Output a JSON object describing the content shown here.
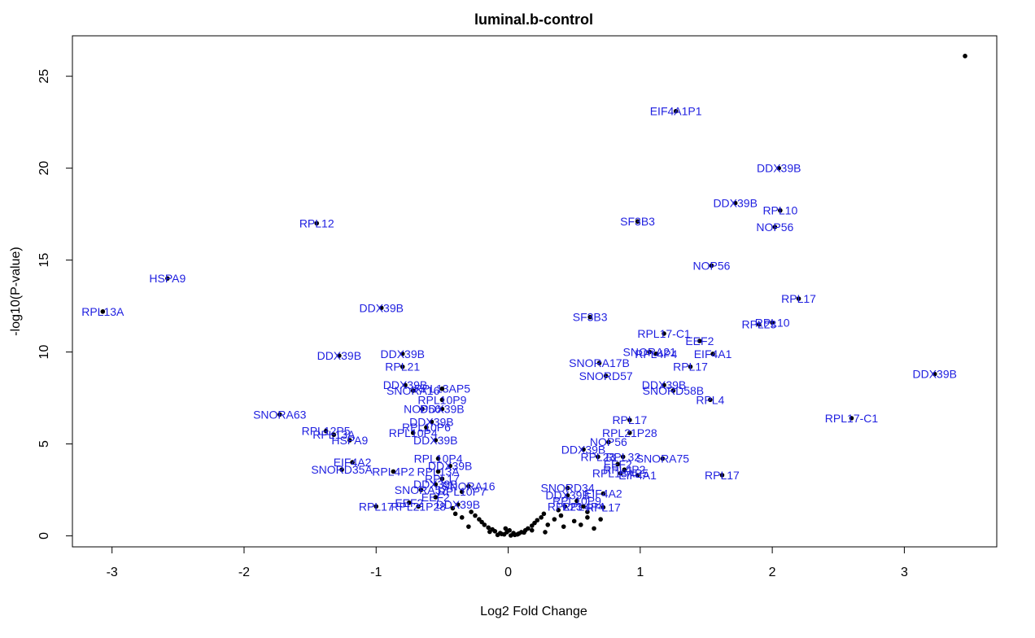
{
  "chart_data": {
    "type": "scatter",
    "title": "luminal.b-control",
    "xlabel": "Log2 Fold Change",
    "ylabel": "-log10(P-value)",
    "xlim": [
      -3.3,
      3.7
    ],
    "ylim": [
      -0.6,
      27.2
    ],
    "xticks": [
      -3,
      -2,
      -1,
      0,
      1,
      2,
      3
    ],
    "yticks": [
      0,
      5,
      10,
      15,
      20,
      25
    ],
    "grid": false,
    "legend": "none",
    "point_color": "#000000",
    "label_color": "#1f1fe0",
    "labeled_points": [
      {
        "x": 1.27,
        "y": 23.1,
        "label": "EIF4A1P1"
      },
      {
        "x": 2.05,
        "y": 20.0,
        "label": "DDX39B"
      },
      {
        "x": 1.72,
        "y": 18.1,
        "label": "DDX39B"
      },
      {
        "x": 2.06,
        "y": 17.7,
        "label": "RPL10"
      },
      {
        "x": 2.02,
        "y": 16.8,
        "label": "NOP56"
      },
      {
        "x": -1.45,
        "y": 17.0,
        "label": "RPL12"
      },
      {
        "x": 0.98,
        "y": 17.1,
        "label": "SF3B3"
      },
      {
        "x": -2.58,
        "y": 14.0,
        "label": "HSPA9"
      },
      {
        "x": 1.54,
        "y": 14.7,
        "label": "NOP56"
      },
      {
        "x": -3.07,
        "y": 12.2,
        "label": "RPL13A"
      },
      {
        "x": 2.2,
        "y": 12.9,
        "label": "RPL17"
      },
      {
        "x": -0.96,
        "y": 12.4,
        "label": "DDX39B"
      },
      {
        "x": 0.62,
        "y": 11.9,
        "label": "SF3B3"
      },
      {
        "x": 2.0,
        "y": 11.6,
        "label": "RPL10"
      },
      {
        "x": 1.9,
        "y": 11.5,
        "label": "RPL23"
      },
      {
        "x": 1.18,
        "y": 11.0,
        "label": "RPL17-C1"
      },
      {
        "x": 1.45,
        "y": 10.6,
        "label": "EEF2"
      },
      {
        "x": 1.07,
        "y": 10.0,
        "label": "SNORA21"
      },
      {
        "x": 1.12,
        "y": 9.9,
        "label": "RPL4P4"
      },
      {
        "x": 1.55,
        "y": 9.9,
        "label": "EIF4A1"
      },
      {
        "x": -0.8,
        "y": 9.9,
        "label": "DDX39B"
      },
      {
        "x": -1.28,
        "y": 9.8,
        "label": "DDX39B"
      },
      {
        "x": 0.69,
        "y": 9.4,
        "label": "SNORA17B"
      },
      {
        "x": 1.38,
        "y": 9.2,
        "label": "RPL17"
      },
      {
        "x": -0.8,
        "y": 9.2,
        "label": "RPL21"
      },
      {
        "x": 0.74,
        "y": 8.7,
        "label": "SNORD57"
      },
      {
        "x": 3.23,
        "y": 8.8,
        "label": "DDX39B"
      },
      {
        "x": 1.18,
        "y": 8.2,
        "label": "DDX39B"
      },
      {
        "x": 1.25,
        "y": 7.9,
        "label": "SNORD58B"
      },
      {
        "x": -0.78,
        "y": 8.2,
        "label": "DDX39B"
      },
      {
        "x": -0.72,
        "y": 7.9,
        "label": "SNORA16"
      },
      {
        "x": -0.5,
        "y": 8.0,
        "label": "RPL13AP5"
      },
      {
        "x": -0.5,
        "y": 7.4,
        "label": "RPL10P9"
      },
      {
        "x": 1.53,
        "y": 7.4,
        "label": "RPL4"
      },
      {
        "x": -0.65,
        "y": 6.9,
        "label": "NOP56"
      },
      {
        "x": -0.5,
        "y": 6.9,
        "label": "DDX39B"
      },
      {
        "x": -1.73,
        "y": 6.6,
        "label": "SNORA63"
      },
      {
        "x": 2.6,
        "y": 6.4,
        "label": "RPL17-C1"
      },
      {
        "x": -0.58,
        "y": 6.2,
        "label": "DDX39B"
      },
      {
        "x": -0.62,
        "y": 5.9,
        "label": "RPL10P6"
      },
      {
        "x": 0.92,
        "y": 6.3,
        "label": "RPL17"
      },
      {
        "x": -1.38,
        "y": 5.7,
        "label": "RPL12P5"
      },
      {
        "x": -1.32,
        "y": 5.5,
        "label": "RPL13A"
      },
      {
        "x": -1.2,
        "y": 5.2,
        "label": "HSPA9"
      },
      {
        "x": -0.72,
        "y": 5.6,
        "label": "RPL10P4"
      },
      {
        "x": 0.92,
        "y": 5.6,
        "label": "RPL21P28"
      },
      {
        "x": -0.55,
        "y": 5.2,
        "label": "DDX39B"
      },
      {
        "x": 0.76,
        "y": 5.1,
        "label": "NOP56"
      },
      {
        "x": 0.57,
        "y": 4.7,
        "label": "DDX39B"
      },
      {
        "x": 0.68,
        "y": 4.3,
        "label": "RPL23"
      },
      {
        "x": 0.87,
        "y": 4.3,
        "label": "RPL32"
      },
      {
        "x": 1.17,
        "y": 4.2,
        "label": "SNORA75"
      },
      {
        "x": -0.53,
        "y": 4.2,
        "label": "RPL10P4"
      },
      {
        "x": -1.18,
        "y": 4.0,
        "label": "EIF4A2"
      },
      {
        "x": 0.83,
        "y": 3.9,
        "label": "EEF2"
      },
      {
        "x": -0.44,
        "y": 3.8,
        "label": "DDX39B"
      },
      {
        "x": 0.88,
        "y": 3.6,
        "label": "RPL4P2"
      },
      {
        "x": -0.53,
        "y": 3.5,
        "label": "RPL13A"
      },
      {
        "x": -1.26,
        "y": 3.6,
        "label": "SNORD35A"
      },
      {
        "x": -0.87,
        "y": 3.5,
        "label": "RPL4P2"
      },
      {
        "x": 0.85,
        "y": 3.4,
        "label": "RPL13AP5"
      },
      {
        "x": 0.98,
        "y": 3.3,
        "label": "EIF4A1"
      },
      {
        "x": 1.62,
        "y": 3.3,
        "label": "RPL17"
      },
      {
        "x": -0.5,
        "y": 3.1,
        "label": "RPL17"
      },
      {
        "x": -0.55,
        "y": 2.8,
        "label": "DDX39B"
      },
      {
        "x": -0.3,
        "y": 2.7,
        "label": "SNORA16"
      },
      {
        "x": 0.45,
        "y": 2.6,
        "label": "SNORD34"
      },
      {
        "x": -0.66,
        "y": 2.5,
        "label": "SNORA57"
      },
      {
        "x": -0.35,
        "y": 2.4,
        "label": "RPL10P7"
      },
      {
        "x": 0.72,
        "y": 2.3,
        "label": "EIF4A2"
      },
      {
        "x": 0.45,
        "y": 2.2,
        "label": "DDX39B"
      },
      {
        "x": -0.55,
        "y": 2.1,
        "label": "EEF2"
      },
      {
        "x": 0.52,
        "y": 1.9,
        "label": "RPL10P9"
      },
      {
        "x": -0.75,
        "y": 1.8,
        "label": "EEF2"
      },
      {
        "x": -0.38,
        "y": 1.7,
        "label": "DDX39B"
      },
      {
        "x": -1.0,
        "y": 1.6,
        "label": "RPL17"
      },
      {
        "x": -0.68,
        "y": 1.6,
        "label": "RPL21P28"
      },
      {
        "x": 0.57,
        "y": 1.6,
        "label": "RPL4P4"
      },
      {
        "x": 0.43,
        "y": 1.6,
        "label": "RPL23"
      },
      {
        "x": 0.72,
        "y": 1.55,
        "label": "RPL17"
      }
    ],
    "unlabeled_points": [
      {
        "x": 3.46,
        "y": 26.1
      },
      {
        "x": 0.02,
        "y": 0.02
      },
      {
        "x": 0.05,
        "y": 0.05
      },
      {
        "x": -0.03,
        "y": 0.08
      },
      {
        "x": 0.08,
        "y": 0.12
      },
      {
        "x": -0.06,
        "y": 0.15
      },
      {
        "x": 0.1,
        "y": 0.2
      },
      {
        "x": -0.1,
        "y": 0.25
      },
      {
        "x": 0.13,
        "y": 0.3
      },
      {
        "x": -0.12,
        "y": 0.35
      },
      {
        "x": 0.15,
        "y": 0.4
      },
      {
        "x": -0.15,
        "y": 0.45
      },
      {
        "x": 0.18,
        "y": 0.55
      },
      {
        "x": -0.18,
        "y": 0.6
      },
      {
        "x": 0.2,
        "y": 0.7
      },
      {
        "x": -0.2,
        "y": 0.75
      },
      {
        "x": 0.22,
        "y": 0.85
      },
      {
        "x": -0.22,
        "y": 0.9
      },
      {
        "x": 0.25,
        "y": 1.0
      },
      {
        "x": -0.25,
        "y": 1.1
      },
      {
        "x": 0.27,
        "y": 1.2
      },
      {
        "x": -0.28,
        "y": 1.3
      },
      {
        "x": 0.3,
        "y": 0.6
      },
      {
        "x": -0.3,
        "y": 0.5
      },
      {
        "x": 0.01,
        "y": 0.3
      },
      {
        "x": -0.01,
        "y": 0.2
      },
      {
        "x": 0.04,
        "y": 0.15
      },
      {
        "x": -0.05,
        "y": 0.1
      },
      {
        "x": 0.07,
        "y": 0.08
      },
      {
        "x": -0.08,
        "y": 0.05
      },
      {
        "x": 0.12,
        "y": 0.18
      },
      {
        "x": -0.14,
        "y": 0.22
      },
      {
        "x": 0.35,
        "y": 0.9
      },
      {
        "x": -0.35,
        "y": 1.0
      },
      {
        "x": 0.4,
        "y": 1.1
      },
      {
        "x": -0.4,
        "y": 1.2
      },
      {
        "x": 0.42,
        "y": 0.5
      },
      {
        "x": 0.5,
        "y": 0.8
      },
      {
        "x": 0.55,
        "y": 0.6
      },
      {
        "x": 0.6,
        "y": 1.0
      },
      {
        "x": 0.65,
        "y": 0.4
      },
      {
        "x": 0.38,
        "y": 1.4
      },
      {
        "x": -0.42,
        "y": 1.5
      },
      {
        "x": 0.6,
        "y": 1.3
      },
      {
        "x": 0.7,
        "y": 0.9
      },
      {
        "x": 0.18,
        "y": 0.3
      },
      {
        "x": -0.02,
        "y": 0.4
      },
      {
        "x": 0.28,
        "y": 0.2
      }
    ]
  }
}
